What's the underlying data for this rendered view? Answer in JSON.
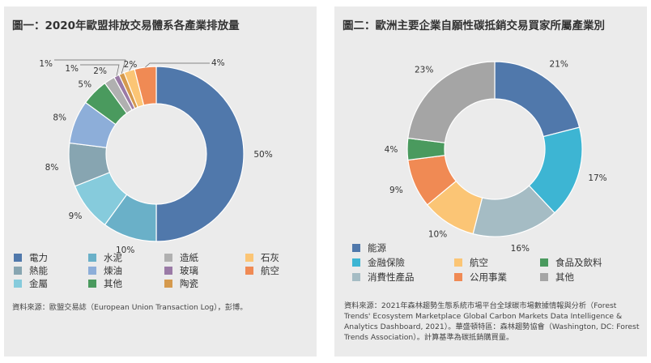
{
  "chart_data": [
    {
      "type": "pie",
      "title": "圖一：2020年歐盟排放交易體系各產業排放量",
      "donut": true,
      "slices": [
        {
          "name": "電力",
          "value": 50,
          "label": "50%",
          "color": "#5078ab"
        },
        {
          "name": "水泥",
          "value": 10,
          "label": "10%",
          "color": "#6ab0c8"
        },
        {
          "name": "金屬",
          "value": 9,
          "label": "9%",
          "color": "#86cbdc"
        },
        {
          "name": "熱能",
          "value": 8,
          "label": "8%",
          "color": "#87a5b1"
        },
        {
          "name": "煉油",
          "value": 8,
          "label": "8%",
          "color": "#8daed9"
        },
        {
          "name": "其他",
          "value": 5,
          "label": "5%",
          "color": "#4a9a5e"
        },
        {
          "name": "造紙",
          "value": 2,
          "label": "2%",
          "color": "#b0b0b0"
        },
        {
          "name": "玻璃",
          "value": 1,
          "label": "1%",
          "color": "#9a7aa6"
        },
        {
          "name": "陶瓷",
          "value": 1,
          "label": "1%",
          "color": "#d59a4e"
        },
        {
          "name": "石灰",
          "value": 2,
          "label": "2%",
          "color": "#fbc575"
        },
        {
          "name": "航空",
          "value": 4,
          "label": "4%",
          "color": "#f08a54"
        }
      ],
      "legend": [
        [
          "電力",
          "水泥",
          "造紙",
          "石灰"
        ],
        [
          "熱能",
          "煉油",
          "玻璃",
          "航空"
        ],
        [
          "金屬",
          "其他",
          "陶瓷"
        ]
      ],
      "source": "資料來源：歐盟交易誌（European Union Transaction Log），彭博。"
    },
    {
      "type": "pie",
      "title": "圖二：歐洲主要企業自願性碳抵銷交易買家所屬產業別",
      "donut": true,
      "slices": [
        {
          "name": "能源",
          "value": 21,
          "label": "21%",
          "color": "#5078ab"
        },
        {
          "name": "金融保險",
          "value": 17,
          "label": "17%",
          "color": "#3db5d3"
        },
        {
          "name": "消費性產品",
          "value": 16,
          "label": "16%",
          "color": "#a5bcc4"
        },
        {
          "name": "航空",
          "value": 10,
          "label": "10%",
          "color": "#fbc575"
        },
        {
          "name": "公用事業",
          "value": 9,
          "label": "9%",
          "color": "#f08a54"
        },
        {
          "name": "食品及飲料",
          "value": 4,
          "label": "4%",
          "color": "#4a9a5e"
        },
        {
          "name": "其他",
          "value": 23,
          "label": "23%",
          "color": "#a5a5a5"
        }
      ],
      "legend": [
        [
          "能源"
        ],
        [
          "金融保險",
          "航空",
          "食品及飲料"
        ],
        [
          "消費性產品",
          "公用事業",
          "其他"
        ]
      ],
      "source": "資料來源：2021年森林趨勢生態系統市場平台全球碳市場數據情報與分析（Forest Trends' Ecosystem Marketplace Global Carbon Markets Data Intelligence & Analytics Dashboard, 2021）。華盛頓特區：森林趨勢協會（Washington, DC: Forest Trends Association）。計算基準為碳抵銷購買量。"
    }
  ]
}
